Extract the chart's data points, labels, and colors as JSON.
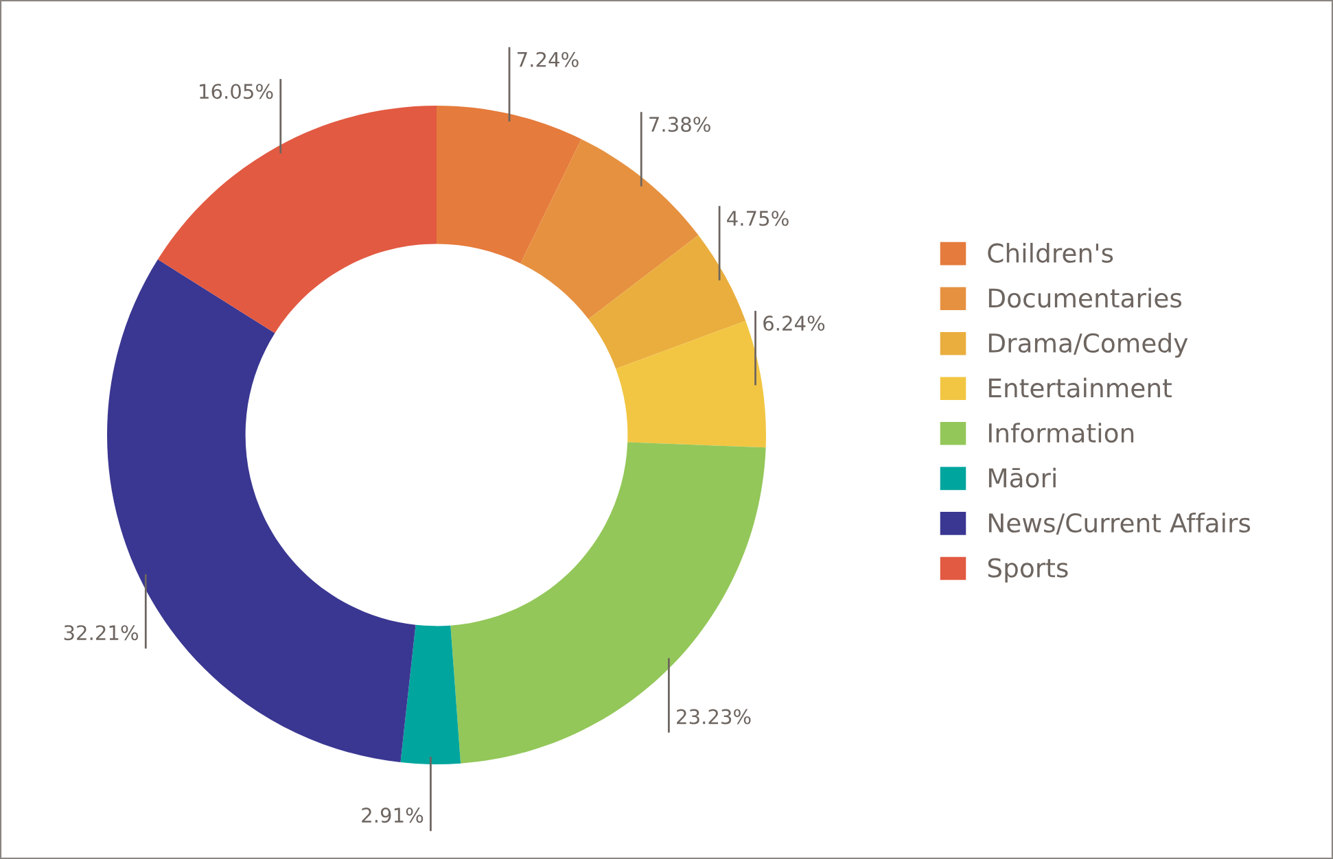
{
  "chart_data": {
    "type": "donut",
    "categories": [
      "Children's",
      "Documentaries",
      "Drama/Comedy",
      "Entertainment",
      "Information",
      "Māori",
      "News/Current Affairs",
      "Sports"
    ],
    "values": [
      7.24,
      7.38,
      4.75,
      6.24,
      23.23,
      2.91,
      32.21,
      16.05
    ],
    "colors": [
      "#e57b3c",
      "#e69140",
      "#eaae3e",
      "#f2c643",
      "#93c759",
      "#00a59e",
      "#3a3792",
      "#e25a42"
    ],
    "value_labels": [
      "7.24%",
      "7.38%",
      "4.75%",
      "6.24%",
      "23.23%",
      "2.91%",
      "32.21%",
      "16.05%"
    ],
    "legend": "right"
  }
}
